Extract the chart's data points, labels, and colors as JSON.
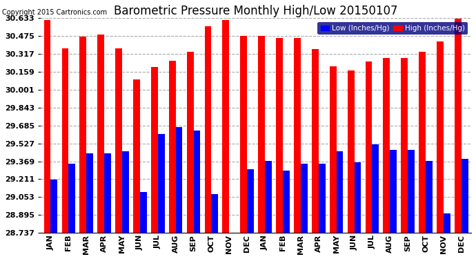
{
  "title": "Barometric Pressure Monthly High/Low 20150107",
  "copyright": "Copyright 2015 Cartronics.com",
  "legend_low": "Low (Inches/Hg)",
  "legend_high": "High (Inches/Hg)",
  "months": [
    "JAN",
    "FEB",
    "MAR",
    "APR",
    "MAY",
    "JUN",
    "JUL",
    "AUG",
    "SEP",
    "OCT",
    "NOV",
    "DEC",
    "JAN",
    "FEB",
    "MAR",
    "APR",
    "MAY",
    "JUN",
    "JUL",
    "AUG",
    "SEP",
    "OCT",
    "NOV",
    "DEC"
  ],
  "high_values": [
    30.62,
    30.37,
    30.47,
    30.49,
    30.37,
    30.09,
    30.2,
    30.26,
    30.34,
    30.56,
    30.62,
    30.48,
    30.48,
    30.46,
    30.46,
    30.36,
    30.21,
    30.17,
    30.25,
    30.28,
    30.28,
    30.34,
    30.43,
    30.63
  ],
  "low_values": [
    29.21,
    29.35,
    29.44,
    29.44,
    29.46,
    29.1,
    29.61,
    29.67,
    29.64,
    29.08,
    28.74,
    29.3,
    29.37,
    29.29,
    29.35,
    29.35,
    29.46,
    29.36,
    29.52,
    29.47,
    29.47,
    29.37,
    28.91,
    29.39
  ],
  "ylim_min": 28.737,
  "ylim_max": 30.633,
  "yticks": [
    28.737,
    28.895,
    29.053,
    29.211,
    29.369,
    29.527,
    29.685,
    29.843,
    30.001,
    30.159,
    30.317,
    30.475,
    30.633
  ],
  "bar_color_high": "#ff0000",
  "bar_color_low": "#0000ff",
  "background_color": "#ffffff",
  "plot_bg_color": "#ffffff",
  "title_fontsize": 12,
  "copyright_fontsize": 7,
  "legend_fontsize": 7.5,
  "tick_fontsize": 8,
  "bar_width": 0.38,
  "grid_color": "#aaaaaa",
  "grid_linestyle": "--",
  "legend_bg": "#000080"
}
